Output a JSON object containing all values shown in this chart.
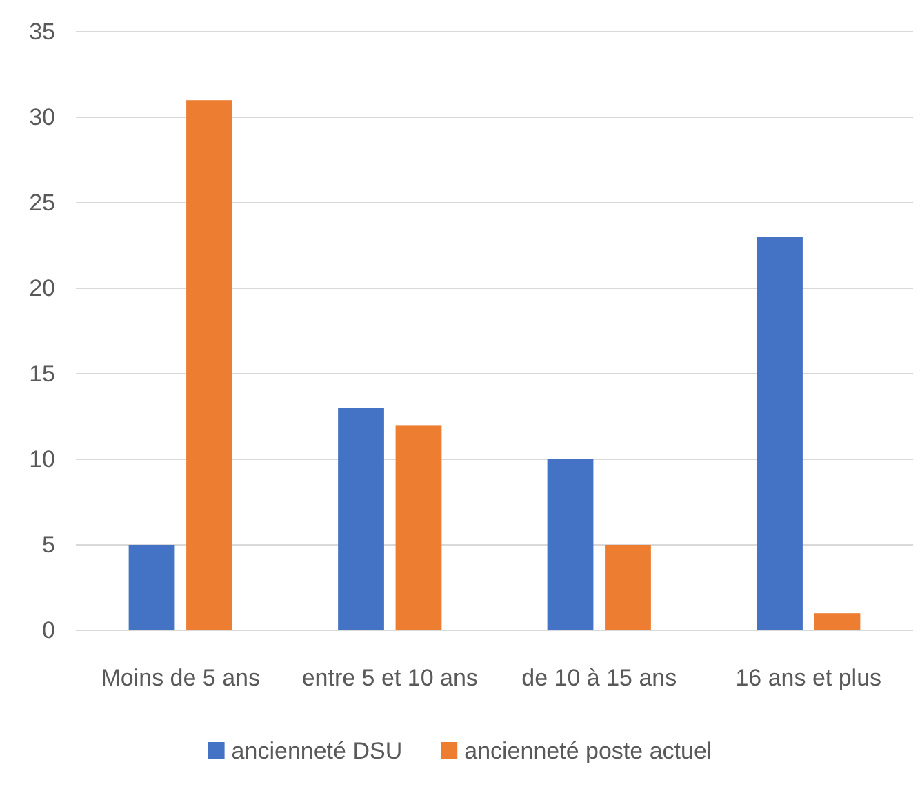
{
  "chart_data": {
    "type": "bar",
    "categories": [
      "Moins de 5 ans",
      "entre 5 et 10 ans",
      "de 10 à 15 ans",
      "16 ans et plus"
    ],
    "series": [
      {
        "name": "ancienneté DSU",
        "color": "#4472c4",
        "values": [
          5,
          13,
          10,
          23
        ]
      },
      {
        "name": "ancienneté poste actuel",
        "color": "#ed7d31",
        "values": [
          31,
          12,
          5,
          1
        ]
      }
    ],
    "ylim": [
      0,
      35
    ],
    "yticks": [
      0,
      5,
      10,
      15,
      20,
      25,
      30,
      35
    ],
    "grid": "y",
    "legend": "bottom"
  }
}
